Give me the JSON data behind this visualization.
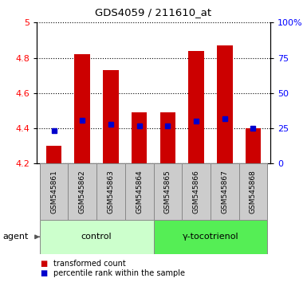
{
  "title": "GDS4059 / 211610_at",
  "samples": [
    "GSM545861",
    "GSM545862",
    "GSM545863",
    "GSM545864",
    "GSM545865",
    "GSM545866",
    "GSM545867",
    "GSM545868"
  ],
  "bar_bottom": 4.2,
  "bar_tops": [
    4.3,
    4.82,
    4.73,
    4.49,
    4.49,
    4.84,
    4.87,
    4.4
  ],
  "percentile_values": [
    4.385,
    4.445,
    4.425,
    4.415,
    4.415,
    4.44,
    4.455,
    4.4
  ],
  "ylim_left": [
    4.2,
    5.0
  ],
  "ylim_right": [
    0,
    100
  ],
  "yticks_left": [
    4.2,
    4.4,
    4.6,
    4.8,
    5.0
  ],
  "ytick_labels_left": [
    "4.2",
    "4.4",
    "4.6",
    "4.8",
    "5"
  ],
  "yticks_right": [
    0,
    25,
    50,
    75,
    100
  ],
  "ytick_labels_right": [
    "0",
    "25",
    "50",
    "75",
    "100%"
  ],
  "bar_color": "#cc0000",
  "blue_color": "#0000cc",
  "groups": [
    {
      "label": "control",
      "indices": [
        0,
        1,
        2,
        3
      ],
      "color": "#ccffcc",
      "edge_color": "#888888"
    },
    {
      "label": "γ-tocotrienol",
      "indices": [
        4,
        5,
        6,
        7
      ],
      "color": "#55ee55",
      "edge_color": "#888888"
    }
  ],
  "agent_label": "agent",
  "legend_items": [
    {
      "color": "#cc0000",
      "label": "transformed count"
    },
    {
      "color": "#0000cc",
      "label": "percentile rank within the sample"
    }
  ],
  "bg_color": "#ffffff",
  "plot_bg": "#ffffff",
  "sample_box_color": "#cccccc",
  "bar_width": 0.55,
  "n_samples": 8
}
